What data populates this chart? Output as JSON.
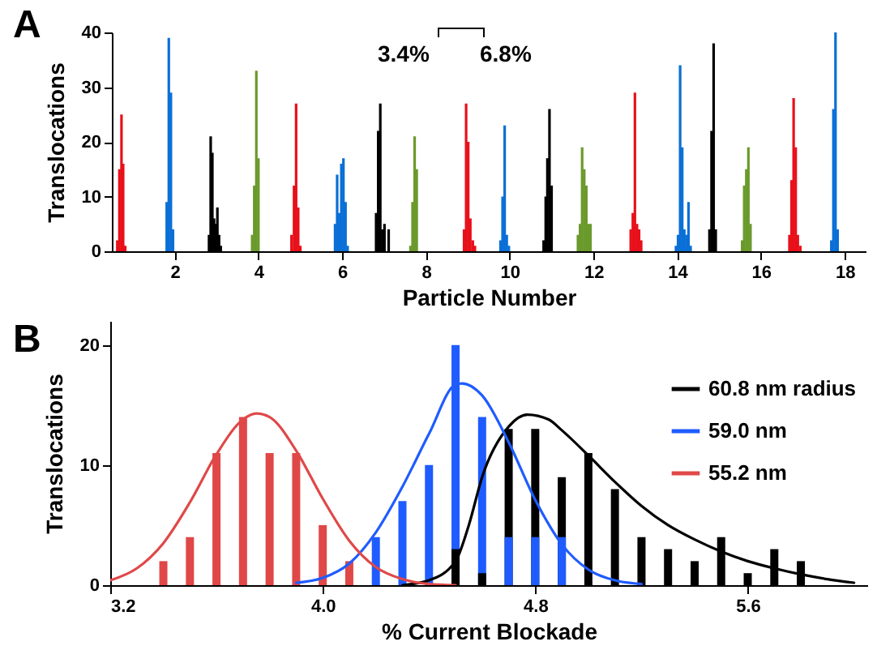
{
  "chart_data": [
    {
      "type": "bar",
      "title": "A",
      "xlabel": "Particle Number",
      "ylabel": "Translocations",
      "xlim": [
        0.5,
        18.5
      ],
      "xticks": [
        2,
        4,
        6,
        8,
        10,
        12,
        14,
        16,
        18
      ],
      "ylim": [
        0,
        40
      ],
      "yticks": [
        0,
        10,
        20,
        30,
        40
      ],
      "annotations": [
        "3.4%",
        "6.8%"
      ],
      "series": [
        {
          "color": "#e8101a",
          "x": [
            0.63,
            0.68,
            0.73,
            0.77,
            0.82,
            4.79,
            4.85,
            4.9,
            4.95,
            5.0,
            8.91,
            8.96,
            9.01,
            9.06,
            9.12,
            9.17,
            12.89,
            12.94,
            12.99,
            13.04,
            13.09,
            13.14,
            16.68,
            16.73,
            16.78,
            16.83,
            16.88,
            16.94
          ],
          "values": [
            2,
            15,
            25,
            16,
            1,
            3,
            12,
            27,
            8,
            1,
            4,
            27,
            20,
            6,
            2,
            1,
            4,
            7,
            29,
            5,
            4,
            2,
            3,
            13,
            28,
            19,
            3,
            1
          ]
        },
        {
          "color": "#0a6fd6",
          "x": [
            1.81,
            1.86,
            1.91,
            1.96,
            5.83,
            5.88,
            5.93,
            5.98,
            6.03,
            6.08,
            6.13,
            9.78,
            9.83,
            9.88,
            9.93,
            9.98,
            13.97,
            14.02,
            14.07,
            14.12,
            14.17,
            14.22,
            14.27,
            14.32,
            17.68,
            17.73,
            17.78,
            17.83
          ],
          "values": [
            9,
            39,
            29,
            4,
            5,
            14,
            7,
            16,
            17,
            9,
            1,
            2,
            10,
            23,
            3,
            1,
            1,
            3,
            34,
            19,
            4,
            3,
            9,
            1,
            2,
            26,
            40,
            4
          ]
        },
        {
          "color": "#000000",
          "x": [
            2.82,
            2.86,
            2.9,
            2.94,
            2.98,
            3.02,
            3.06,
            3.1,
            6.81,
            6.86,
            6.91,
            6.96,
            7.01,
            7.11,
            10.81,
            10.86,
            10.9,
            10.95,
            11.0,
            14.77,
            14.82,
            14.87,
            14.92
          ],
          "values": [
            3,
            21,
            18,
            6,
            5,
            8,
            3,
            1,
            7,
            22,
            27,
            4,
            5,
            4,
            2,
            10,
            17,
            26,
            12,
            4,
            22,
            38,
            4
          ]
        },
        {
          "color": "#6b9a2c",
          "x": [
            3.85,
            3.9,
            3.95,
            4.0,
            7.63,
            7.68,
            7.73,
            7.78,
            11.63,
            11.68,
            11.73,
            11.78,
            11.83,
            11.88,
            11.93,
            15.55,
            15.6,
            15.65,
            15.7,
            15.75
          ],
          "values": [
            3,
            12,
            33,
            17,
            1,
            9,
            21,
            15,
            3,
            5,
            19,
            15,
            12,
            5,
            5,
            2,
            12,
            15,
            19,
            5
          ]
        }
      ]
    },
    {
      "type": "bar",
      "title": "B",
      "xlabel": "% Current Blockade",
      "ylabel": "Translocations",
      "xlim": [
        3.2,
        6.05
      ],
      "xticks": [
        3.2,
        {
          "value": 4,
          "label": "4.0"
        },
        4.8,
        5.6
      ],
      "ylim": [
        0,
        22
      ],
      "yticks": [
        0,
        10,
        20
      ],
      "legend": "top right",
      "series": [
        {
          "type": "bar",
          "color": "#000000",
          "x": [
            4.5,
            4.6,
            4.7,
            4.8,
            4.9,
            5.0,
            5.1,
            5.2,
            5.3,
            5.4,
            5.5,
            5.6,
            5.7,
            5.8
          ],
          "values": [
            3,
            1,
            13,
            13,
            9,
            11,
            8,
            4,
            3,
            2,
            4,
            1,
            3,
            2
          ]
        },
        {
          "type": "bar",
          "color": "#1f5cff",
          "x": [
            4.2,
            4.3,
            4.4,
            4.5,
            4.6,
            4.7,
            4.8,
            4.9
          ],
          "values": [
            4,
            7,
            10,
            20,
            14,
            4,
            4,
            4
          ]
        },
        {
          "type": "bar",
          "color": "#e04848",
          "x": [
            3.4,
            3.5,
            3.6,
            3.7,
            3.8,
            3.9,
            4.0,
            4.1
          ],
          "values": [
            2,
            4,
            11,
            14,
            11,
            11,
            5,
            2
          ]
        },
        {
          "type": "line",
          "name": "60.8 nm radius",
          "color": "#000000",
          "x": [
            4.3,
            4.4,
            4.5,
            4.55,
            4.6,
            4.7,
            4.77,
            4.85,
            4.9,
            5.0,
            5.1,
            5.2,
            5.3,
            5.4,
            5.5,
            5.6,
            5.7,
            5.8,
            5.9,
            6.0
          ],
          "values": [
            0,
            0.4,
            2,
            5,
            9,
            13.2,
            14.2,
            13.8,
            12.9,
            10.8,
            8.6,
            6.6,
            5,
            3.8,
            2.8,
            2,
            1.4,
            0.9,
            0.5,
            0.2
          ]
        },
        {
          "type": "line",
          "name": "59.0 nm",
          "color": "#1f5cff",
          "x": [
            3.9,
            4.0,
            4.1,
            4.2,
            4.3,
            4.4,
            4.5,
            4.525,
            4.6,
            4.7,
            4.8,
            4.9,
            5.0,
            5.1,
            5.2
          ],
          "values": [
            0.2,
            0.6,
            1.8,
            4.4,
            8.2,
            12.6,
            16.7,
            16.8,
            15.8,
            11.9,
            7.1,
            3.4,
            1.3,
            0.4,
            0.1
          ]
        },
        {
          "type": "line",
          "name": "55.2 nm",
          "color": "#e04848",
          "x": [
            3.2,
            3.3,
            3.4,
            3.5,
            3.6,
            3.7,
            3.75,
            3.8,
            3.9,
            4.0,
            4.1,
            4.2,
            4.3,
            4.4,
            4.5
          ],
          "values": [
            0.4,
            1.4,
            3.5,
            6.9,
            10.9,
            13.8,
            14.3,
            14.0,
            11.2,
            7.2,
            3.7,
            1.5,
            0.5,
            0.1,
            0
          ]
        }
      ]
    }
  ]
}
